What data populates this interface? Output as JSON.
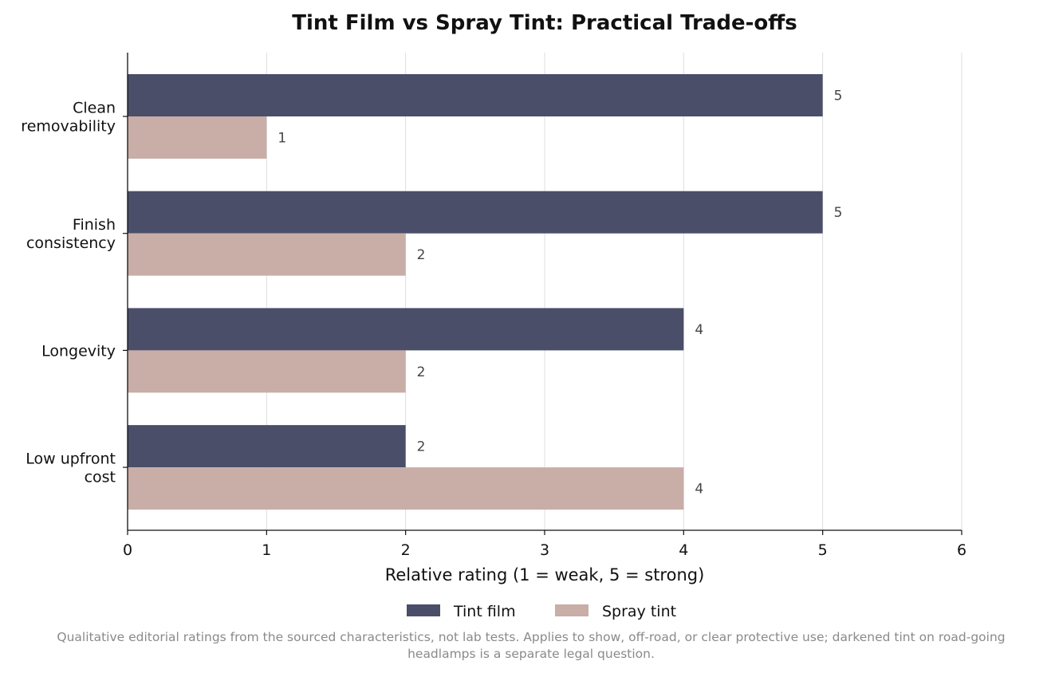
{
  "chart_data": {
    "type": "bar",
    "orientation": "horizontal",
    "title": "Tint Film vs Spray Tint: Practical Trade-offs",
    "xlabel": "Relative rating (1 = weak, 5 = strong)",
    "xlim": [
      0,
      6
    ],
    "xticks": [
      0,
      1,
      2,
      3,
      4,
      5,
      6
    ],
    "grid": true,
    "legend_position": "bottom-center",
    "categories": [
      [
        "Clean",
        "removability"
      ],
      [
        "Finish",
        "consistency"
      ],
      [
        "Longevity"
      ],
      [
        "Low upfront",
        "cost"
      ]
    ],
    "series": [
      {
        "name": "Tint film",
        "color": "#4a4e69",
        "values": [
          5,
          5,
          4,
          2
        ]
      },
      {
        "name": "Spray tint",
        "color": "#c9ada7",
        "values": [
          1,
          2,
          2,
          4
        ]
      }
    ]
  },
  "footnote": {
    "line1": "Qualitative editorial ratings from the sourced characteristics, not lab tests. Applies to show, off-road, or clear protective use; darkened tint on road-going",
    "line2": "headlamps is a separate legal question."
  }
}
